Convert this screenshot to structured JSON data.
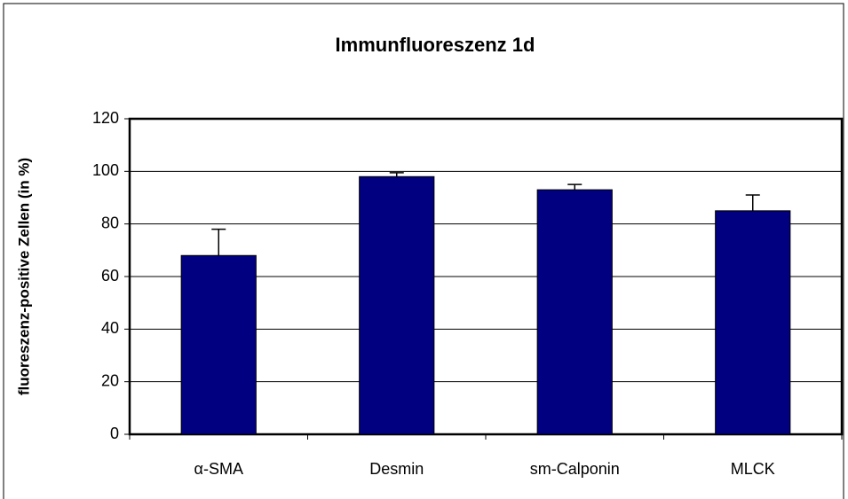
{
  "chart_data": {
    "type": "bar",
    "title": "Immunfluoreszenz 1d",
    "ylabel": "fluoreszenz-positive Zellen (in %)",
    "categories": [
      "α-SMA",
      "Desmin",
      "sm-Calponin",
      "MLCK"
    ],
    "values": [
      68,
      98,
      93,
      85
    ],
    "errors": [
      10,
      1.5,
      2,
      6
    ],
    "color": "#000080",
    "ylim": [
      0,
      120
    ],
    "yticks": [
      0,
      20,
      40,
      60,
      80,
      100,
      120
    ],
    "grid": true
  }
}
